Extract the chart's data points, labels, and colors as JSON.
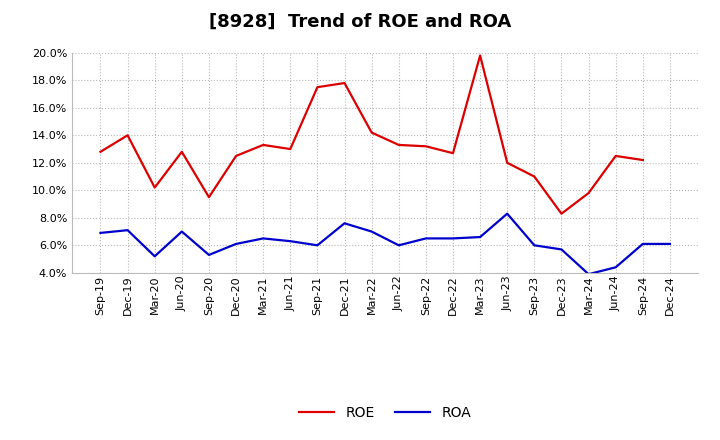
{
  "title": "[8928]  Trend of ROE and ROA",
  "x_labels": [
    "Sep-19",
    "Dec-19",
    "Mar-20",
    "Jun-20",
    "Sep-20",
    "Dec-20",
    "Mar-21",
    "Jun-21",
    "Sep-21",
    "Dec-21",
    "Mar-22",
    "Jun-22",
    "Sep-22",
    "Dec-22",
    "Mar-23",
    "Jun-23",
    "Sep-23",
    "Dec-23",
    "Mar-24",
    "Jun-24",
    "Sep-24",
    "Dec-24"
  ],
  "roe": [
    12.8,
    14.0,
    10.2,
    12.8,
    9.5,
    12.5,
    13.3,
    13.0,
    17.5,
    17.8,
    14.2,
    13.3,
    13.2,
    12.7,
    19.8,
    12.0,
    11.0,
    8.3,
    9.8,
    12.5,
    12.2,
    null
  ],
  "roa": [
    6.9,
    7.1,
    5.2,
    7.0,
    5.3,
    6.1,
    6.5,
    6.3,
    6.0,
    7.6,
    7.0,
    6.0,
    6.5,
    6.5,
    6.6,
    8.3,
    6.0,
    5.7,
    3.9,
    4.4,
    6.1,
    6.1
  ],
  "roe_color": "#dd0000",
  "roa_color": "#0000cc",
  "ylim_min": 4.0,
  "ylim_max": 20.0,
  "yticks": [
    4.0,
    6.0,
    8.0,
    10.0,
    12.0,
    14.0,
    16.0,
    18.0,
    20.0
  ],
  "background_color": "#ffffff",
  "grid_color": "#999999",
  "title_fontsize": 13,
  "axis_fontsize": 8,
  "legend_fontsize": 10,
  "line_width": 1.6
}
